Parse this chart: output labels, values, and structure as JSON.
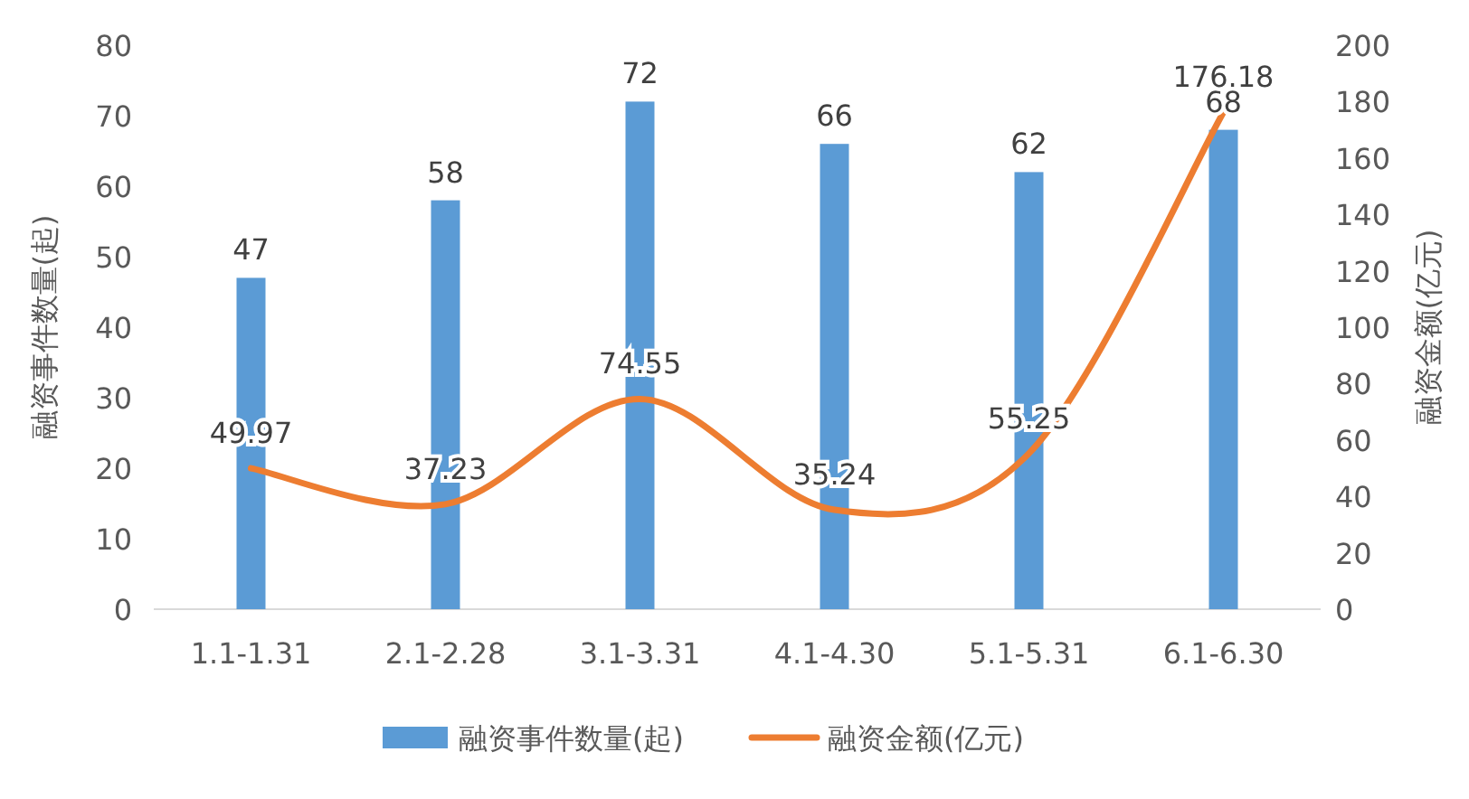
{
  "chart_data": {
    "type": "bar",
    "ylabel": "融资事件数量(起)",
    "y2label": "融资金额(亿元)",
    "categories": [
      "1.1-1.31",
      "2.1-2.28",
      "3.1-3.31",
      "4.1-4.30",
      "5.1-5.31",
      "6.1-6.30"
    ],
    "series": [
      {
        "name": "融资事件数量(起)",
        "color": "#5b9bd5",
        "values": [
          47,
          58,
          72,
          66,
          62,
          68
        ]
      },
      {
        "name": "融资金额(亿元)",
        "type": "line",
        "axis": "y2",
        "color": "#ed7d31",
        "values": [
          49.97,
          37.23,
          74.55,
          35.24,
          55.25,
          176.18
        ]
      }
    ],
    "ylim": [
      0,
      80
    ],
    "yticks": [
      0,
      10,
      20,
      30,
      40,
      50,
      60,
      70,
      80
    ],
    "y2lim": [
      0,
      200
    ],
    "y2ticks": [
      0,
      20,
      40,
      60,
      80,
      100,
      120,
      140,
      160,
      180,
      200
    ],
    "data_labels": true,
    "legend": "bottom"
  }
}
